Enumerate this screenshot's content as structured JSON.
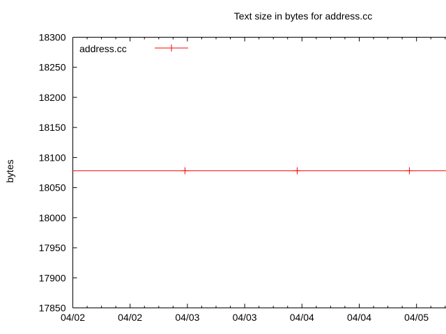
{
  "chart_data": {
    "type": "line",
    "title": "Text size in bytes for address.cc",
    "xlabel": "",
    "ylabel": "bytes",
    "ylim": [
      17850,
      18300
    ],
    "y_ticks": [
      18300,
      18250,
      18200,
      18150,
      18100,
      18050,
      18000,
      17950,
      17900,
      17850
    ],
    "x_axis": {
      "major_step_hours": 12,
      "minor_step_hours": 3,
      "range_hours": [
        0,
        78.3
      ],
      "major_tick_labels": [
        "04/02",
        "04/02",
        "04/03",
        "04/03",
        "04/04",
        "04/04",
        "04/05"
      ]
    },
    "series": [
      {
        "name": "address.cc",
        "color": "#ff0000",
        "marker": "plus",
        "constant_value": 18078,
        "line_span_hours": [
          0,
          78.3
        ],
        "points": [
          {
            "x_hours": 23.5,
            "y": 18078
          },
          {
            "x_hours": 47.0,
            "y": 18078
          },
          {
            "x_hours": 70.5,
            "y": 18078
          }
        ]
      }
    ],
    "legend": {
      "position": "top-left-inside",
      "entries": [
        "address.cc"
      ]
    },
    "grid": "off",
    "colors": {
      "axis": "#000000",
      "text": "#000000",
      "background": "#ffffff"
    }
  }
}
